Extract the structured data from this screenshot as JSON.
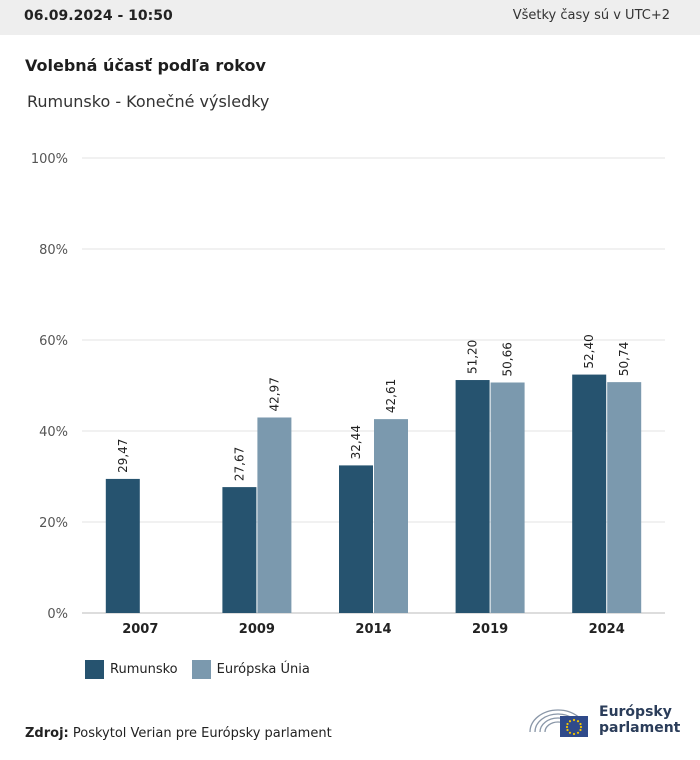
{
  "header": {
    "date": "06.09.2024 - 10:50",
    "timezone": "Všetky časy sú v UTC+2"
  },
  "title": "Volebná účasť podľa rokov",
  "subtitle": "Rumunsko - Konečné výsledky",
  "legend": [
    {
      "label": "Rumunsko",
      "color": "#26536f"
    },
    {
      "label": "Európska Únia",
      "color": "#7b99ae"
    }
  ],
  "source": {
    "label": "Zdroj:",
    "text": "Poskytol Verian pre Európsky parlament"
  },
  "logo": {
    "line1": "Európsky",
    "line2": "parlament"
  },
  "chart_data": {
    "type": "bar",
    "categories": [
      "2007",
      "2009",
      "2014",
      "2019",
      "2024"
    ],
    "series": [
      {
        "name": "Rumunsko",
        "values": [
          29.47,
          27.67,
          32.44,
          51.2,
          52.4
        ],
        "labels": [
          "29,47",
          "27,67",
          "32,44",
          "51,20",
          "52,40"
        ],
        "color": "#26536f"
      },
      {
        "name": "Európska Únia",
        "values": [
          null,
          42.97,
          42.61,
          50.66,
          50.74
        ],
        "labels": [
          "",
          "42,97",
          "42,61",
          "50,66",
          "50,74"
        ],
        "color": "#7b99ae"
      }
    ],
    "yticks": [
      "0%",
      "20%",
      "40%",
      "60%",
      "80%",
      "100%"
    ],
    "ylim": [
      0,
      100
    ],
    "grid": true,
    "legend_position": "bottom-left"
  }
}
